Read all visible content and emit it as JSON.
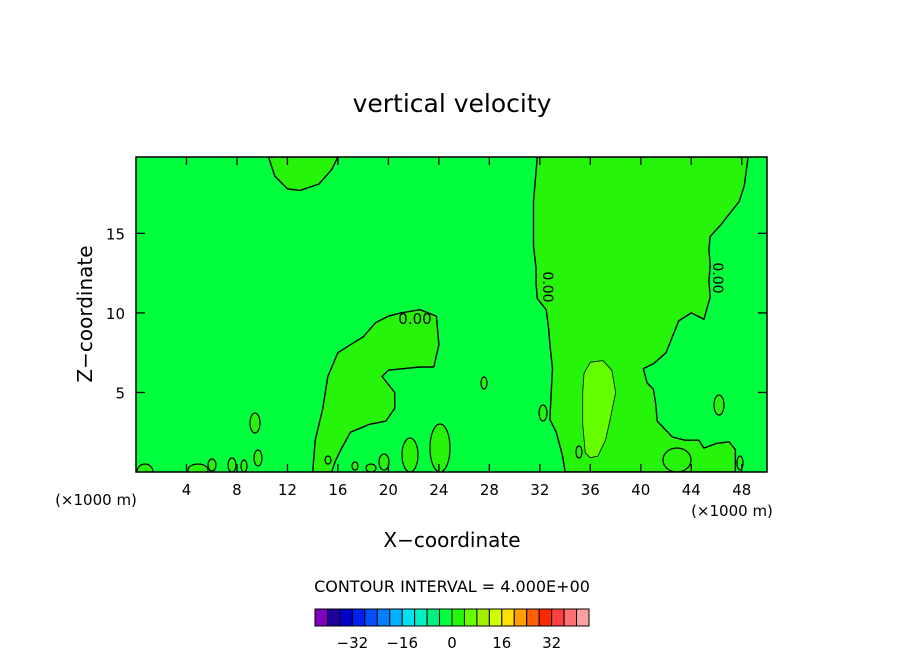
{
  "chart_data": {
    "type": "heatmap",
    "title": "vertical velocity",
    "xlabel": "X−coordinate",
    "ylabel": "Z−coordinate",
    "x_unit": "(×1000 m)",
    "x_unit_right": "(×1000 m)",
    "xlim": [
      0,
      50
    ],
    "ylim": [
      0,
      19.8
    ],
    "x_ticks": [
      4,
      8,
      12,
      16,
      20,
      24,
      28,
      32,
      36,
      40,
      44,
      48
    ],
    "y_ticks": [
      5,
      10,
      15
    ],
    "contour_label": "0.00",
    "contour_interval_text": "CONTOUR INTERVAL = 4.000E+00",
    "background_color": "#00ff3c",
    "regions": [
      {
        "level": 4,
        "color": "#26f40a",
        "outline": [
          [
            10.5,
            19.8
          ],
          [
            11,
            18.6
          ],
          [
            12,
            17.8
          ],
          [
            13,
            17.7
          ],
          [
            14.5,
            18.1
          ],
          [
            15.5,
            19
          ],
          [
            16,
            19.8
          ]
        ]
      },
      {
        "level": 4,
        "color": "#26f40a",
        "outline": [
          [
            14,
            0
          ],
          [
            14.2,
            2
          ],
          [
            14.8,
            4
          ],
          [
            15.2,
            6
          ],
          [
            16,
            7.5
          ],
          [
            17,
            8
          ],
          [
            18,
            8.5
          ],
          [
            19,
            9.4
          ],
          [
            20,
            9.8
          ],
          [
            21,
            10
          ],
          [
            22.5,
            10.2
          ],
          [
            23.8,
            9.8
          ],
          [
            24,
            8
          ],
          [
            23.6,
            6.6
          ],
          [
            22.5,
            6.6
          ],
          [
            20,
            6.4
          ],
          [
            19.5,
            6
          ],
          [
            20.5,
            5
          ],
          [
            20.5,
            4
          ],
          [
            19.8,
            3.2
          ],
          [
            18.5,
            3
          ],
          [
            17,
            2.5
          ],
          [
            16.3,
            1.5
          ],
          [
            15.8,
            0.7
          ],
          [
            15.5,
            0
          ]
        ]
      },
      {
        "level": 4,
        "color": "#26f40a",
        "outline": [
          [
            31.8,
            19.8
          ],
          [
            31.5,
            17
          ],
          [
            31.5,
            14.2
          ],
          [
            31.7,
            12.8
          ],
          [
            31.7,
            11.8
          ],
          [
            31.8,
            10.9
          ],
          [
            32.5,
            10.2
          ],
          [
            32.7,
            9
          ],
          [
            32.8,
            8
          ],
          [
            33,
            6.5
          ],
          [
            32.9,
            5
          ],
          [
            32.8,
            3.3
          ],
          [
            33.3,
            2.5
          ],
          [
            33.8,
            1
          ],
          [
            34,
            0
          ],
          [
            47.5,
            0
          ],
          [
            47.5,
            1.4
          ],
          [
            47,
            1.9
          ],
          [
            46,
            1.8
          ],
          [
            45,
            1.5
          ],
          [
            44.6,
            2
          ],
          [
            43.5,
            2
          ],
          [
            42.5,
            2.2
          ],
          [
            41.3,
            3.2
          ],
          [
            41.2,
            4.2
          ],
          [
            41,
            5.2
          ],
          [
            40.5,
            5.6
          ],
          [
            40.2,
            6.5
          ],
          [
            41,
            6.8
          ],
          [
            42,
            7.5
          ],
          [
            42.5,
            8.5
          ],
          [
            43,
            9.5
          ],
          [
            44,
            10
          ],
          [
            45,
            9.6
          ],
          [
            45.5,
            11
          ],
          [
            45.4,
            12
          ],
          [
            45.5,
            13
          ],
          [
            45.4,
            14
          ],
          [
            45.5,
            14.8
          ],
          [
            46.3,
            15.5
          ],
          [
            47.8,
            17
          ],
          [
            48.2,
            18
          ],
          [
            48.5,
            19.8
          ]
        ]
      },
      {
        "level": 8,
        "color": "#66ff00",
        "outline": [
          [
            35.6,
            1.2
          ],
          [
            35.4,
            3
          ],
          [
            35.4,
            5
          ],
          [
            35.5,
            6.2
          ],
          [
            36,
            6.9
          ],
          [
            37,
            7
          ],
          [
            37.7,
            6.4
          ],
          [
            38,
            5
          ],
          [
            37.6,
            3.4
          ],
          [
            37.2,
            2
          ],
          [
            36.6,
            1
          ],
          [
            36,
            0.9
          ]
        ]
      }
    ],
    "colorbar": {
      "colors": [
        "#7f00bf",
        "#2200a0",
        "#0000c8",
        "#0020f0",
        "#0050ff",
        "#0080ff",
        "#00b0ff",
        "#00e0f0",
        "#00f0c0",
        "#00f080",
        "#00ff3c",
        "#26f40a",
        "#66ff00",
        "#a0f000",
        "#d0ff00",
        "#ffe000",
        "#ffa000",
        "#ff6000",
        "#ff2800",
        "#ff4040",
        "#ff7070",
        "#ffa0a0"
      ],
      "tick_labels": [
        "−32",
        "−16",
        "0",
        "16",
        "32"
      ],
      "tick_values": [
        -32,
        -16,
        0,
        16,
        32
      ]
    }
  }
}
